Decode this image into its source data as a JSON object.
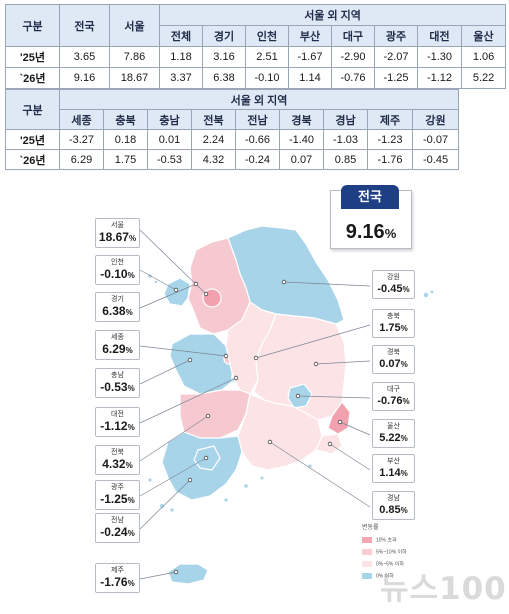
{
  "table1": {
    "h_gubun": "구분",
    "h_national": "전국",
    "h_seoul": "서울",
    "h_outside": "서울 외 지역",
    "sub": [
      "전체",
      "경기",
      "인천",
      "부산",
      "대구",
      "광주",
      "대전",
      "울산"
    ],
    "rows": [
      {
        "label": "'25년",
        "national": "3.65",
        "seoul": "7.86",
        "vals": [
          "1.18",
          "3.16",
          "2.51",
          "-1.67",
          "-2.90",
          "-2.07",
          "-1.30",
          "1.06"
        ]
      },
      {
        "label": "`26년",
        "national": "9.16",
        "seoul": "18.67",
        "vals": [
          "3.37",
          "6.38",
          "-0.10",
          "1.14",
          "-0.76",
          "-1.25",
          "-1.12",
          "5.22"
        ]
      }
    ]
  },
  "table2": {
    "h_gubun": "구분",
    "h_outside": "서울 외 지역",
    "sub": [
      "세종",
      "충북",
      "충남",
      "전북",
      "전남",
      "경북",
      "경남",
      "제주",
      "강원"
    ],
    "rows": [
      {
        "label": "'25년",
        "vals": [
          "-3.27",
          "0.18",
          "0.01",
          "2.24",
          "-0.66",
          "-1.40",
          "-1.03",
          "-1.23",
          "-0.07"
        ]
      },
      {
        "label": "`26년",
        "vals": [
          "6.29",
          "1.75",
          "-0.53",
          "4.32",
          "-0.24",
          "0.07",
          "0.85",
          "-1.76",
          "-0.45"
        ]
      }
    ]
  },
  "national": {
    "label": "전국",
    "value": "9.16",
    "unit": "%"
  },
  "left_callouts": [
    {
      "name": "서울",
      "value": "18.67"
    },
    {
      "name": "인천",
      "value": "-0.10"
    },
    {
      "name": "경기",
      "value": "6.38"
    },
    {
      "name": "세종",
      "value": "6.29"
    },
    {
      "name": "충남",
      "value": "-0.53"
    },
    {
      "name": "대전",
      "value": "-1.12"
    },
    {
      "name": "전북",
      "value": "4.32"
    },
    {
      "name": "광주",
      "value": "-1.25"
    },
    {
      "name": "전남",
      "value": "-0.24"
    },
    {
      "name": "제주",
      "value": "-1.76"
    }
  ],
  "right_callouts": [
    {
      "name": "강원",
      "value": "-0.45"
    },
    {
      "name": "충북",
      "value": "1.75"
    },
    {
      "name": "경북",
      "value": "0.07"
    },
    {
      "name": "대구",
      "value": "-0.76"
    },
    {
      "name": "울산",
      "value": "5.22"
    },
    {
      "name": "부산",
      "value": "1.14"
    },
    {
      "name": "경남",
      "value": "0.85"
    }
  ],
  "unit": "%",
  "legend": {
    "title": "변동률",
    "items": [
      {
        "label": "10% 초과",
        "color": "#f4a7b3"
      },
      {
        "label": "5%~10% 이하",
        "color": "#f9cdd4"
      },
      {
        "label": "0%~5% 이하",
        "color": "#fbe3e6"
      },
      {
        "label": "0% 이하",
        "color": "#a8d4ea"
      }
    ]
  },
  "colors": {
    "negative": "#a8d4ea",
    "low": "#fbe3e6",
    "mid": "#f6c9d0",
    "high": "#f2a1ae",
    "header": "#dfe8f5",
    "national_badge": "#1f3f84"
  },
  "watermark": "뉴스100"
}
